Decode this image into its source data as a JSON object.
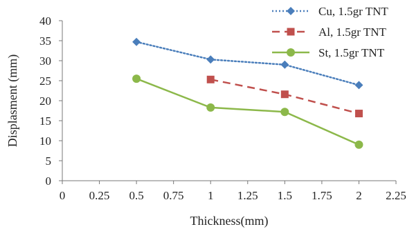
{
  "chart_data": {
    "type": "line",
    "title": "",
    "xlabel": "Thickness(mm)",
    "ylabel": "Displasment (mm)",
    "xlim": [
      0,
      2.25
    ],
    "ylim": [
      0,
      40
    ],
    "x_ticks": [
      "0",
      "0.25",
      "0.5",
      "0.75",
      "1",
      "1.25",
      "1.5",
      "1.75",
      "2",
      "2.25"
    ],
    "y_ticks": [
      "0",
      "5",
      "10",
      "15",
      "20",
      "25",
      "30",
      "35",
      "40"
    ],
    "grid": false,
    "legend_position": "top-right",
    "series": [
      {
        "name": "Cu, 1.5gr TNT",
        "color": "#4a7ebb",
        "line_style": "dotted",
        "marker": "diamond",
        "x": [
          0.5,
          1,
          1.5,
          2
        ],
        "y": [
          34.7,
          30.3,
          29.0,
          23.9
        ]
      },
      {
        "name": "Al, 1.5gr TNT",
        "color": "#c0504d",
        "line_style": "dashed",
        "marker": "square",
        "x": [
          1,
          1.5,
          2
        ],
        "y": [
          25.3,
          21.6,
          16.8
        ]
      },
      {
        "name": "St, 1.5gr TNT",
        "color": "#8cb84a",
        "line_style": "solid",
        "marker": "circle",
        "x": [
          0.5,
          1,
          1.5,
          2
        ],
        "y": [
          25.5,
          18.3,
          17.2,
          9.0
        ]
      }
    ]
  }
}
